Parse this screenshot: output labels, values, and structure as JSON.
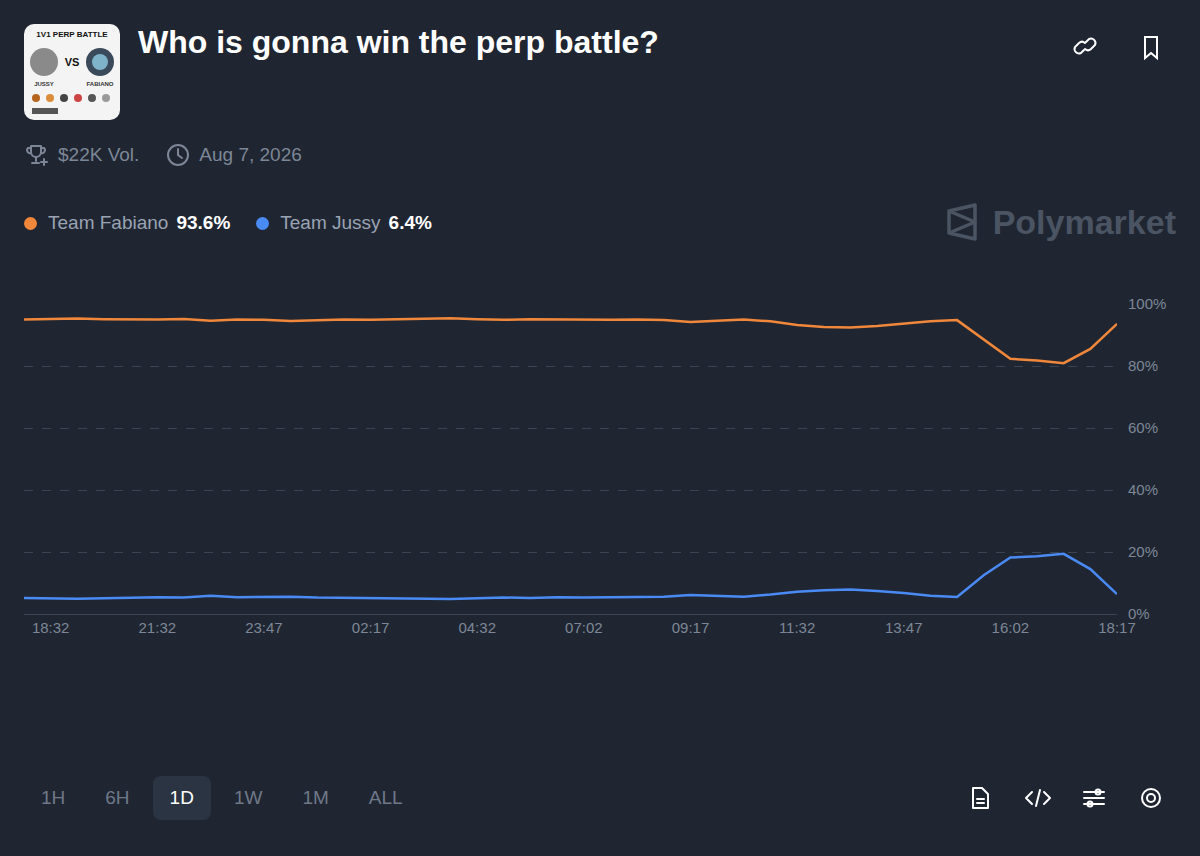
{
  "page": {
    "title": "Who is gonna win the perp battle?",
    "volume": "$22K Vol.",
    "date": "Aug 7, 2026",
    "watermark": "Polymarket",
    "current_labels": [
      "93.6%",
      "6.4%"
    ],
    "timeframes": [
      "1H",
      "6H",
      "1D",
      "1W",
      "1M",
      "ALL"
    ],
    "selected_timeframe": "1D",
    "thumbnail": {
      "heading": "1V1 PERP BATTLE",
      "versus": "VS",
      "left": "JUSSY",
      "right": "FABIANO"
    }
  },
  "chart_data": {
    "type": "line",
    "categories": [
      null,
      "18:32",
      null,
      null,
      null,
      "21:32",
      null,
      null,
      null,
      "23:47",
      null,
      null,
      null,
      "02:17",
      null,
      null,
      null,
      "04:32",
      null,
      null,
      null,
      "07:02",
      null,
      null,
      null,
      "09:17",
      null,
      null,
      null,
      "11:32",
      null,
      null,
      null,
      "13:47",
      null,
      null,
      null,
      "16:02",
      null,
      null,
      null,
      "18:17"
    ],
    "series": [
      {
        "name": "Team Fabiano",
        "color": "#f0873a",
        "values": [
          95.0,
          95.2,
          95.3,
          95.1,
          95.0,
          95.0,
          95.2,
          94.6,
          95.0,
          94.9,
          94.5,
          94.7,
          95.0,
          94.9,
          95.0,
          95.2,
          95.4,
          95.1,
          94.9,
          95.1,
          95.0,
          95.1,
          94.9,
          95.0,
          94.8,
          94.2,
          94.6,
          95.0,
          94.4,
          93.2,
          92.6,
          92.4,
          92.9,
          93.6,
          94.4,
          94.8,
          88.5,
          82.3,
          81.8,
          80.9,
          85.5,
          93.6
        ]
      },
      {
        "name": "Team Jussy",
        "color": "#4a8af4",
        "values": [
          5.2,
          5.0,
          4.9,
          5.1,
          5.3,
          5.4,
          5.3,
          5.9,
          5.4,
          5.5,
          5.6,
          5.3,
          5.2,
          5.3,
          5.1,
          5.0,
          4.8,
          5.1,
          5.3,
          5.2,
          5.4,
          5.3,
          5.4,
          5.5,
          5.6,
          6.1,
          5.8,
          5.6,
          6.3,
          7.2,
          7.7,
          7.9,
          7.4,
          6.8,
          5.9,
          5.5,
          12.5,
          18.2,
          18.6,
          19.4,
          14.5,
          6.4
        ]
      }
    ],
    "ylim": [
      0,
      100
    ],
    "yticks": [
      {
        "value": 0,
        "label": "0%"
      },
      {
        "value": 20,
        "label": "20%"
      },
      {
        "value": 40,
        "label": "40%"
      },
      {
        "value": 60,
        "label": "60%"
      },
      {
        "value": 80,
        "label": "80%"
      },
      {
        "value": 100,
        "label": "100%"
      }
    ],
    "grid": true,
    "legend": "top-left"
  }
}
